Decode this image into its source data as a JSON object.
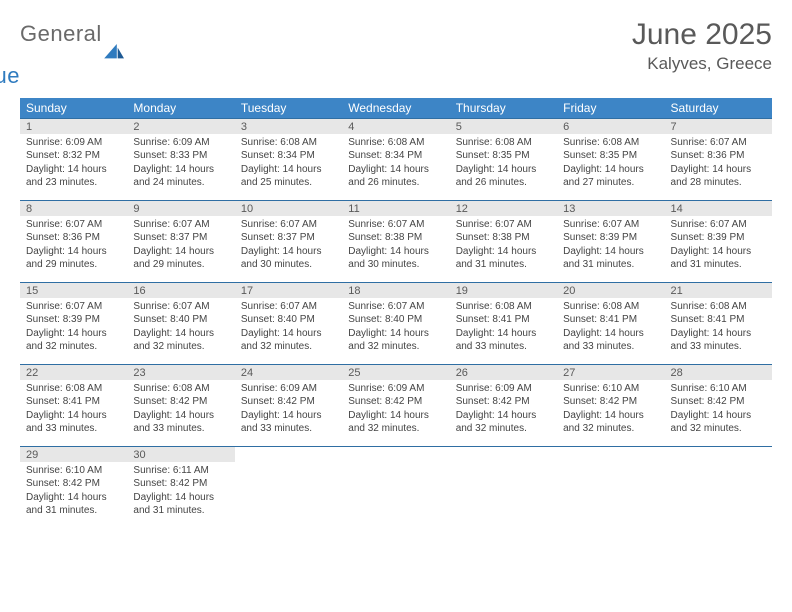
{
  "brand": {
    "word1": "General",
    "word2": "Blue"
  },
  "title": "June 2025",
  "location": "Kalyves, Greece",
  "weekdays": [
    "Sunday",
    "Monday",
    "Tuesday",
    "Wednesday",
    "Thursday",
    "Friday",
    "Saturday"
  ],
  "colors": {
    "header_bg": "#3d85c6",
    "header_text": "#ffffff",
    "daynum_bg": "#e7e7e7",
    "border": "#2f6ea3",
    "text": "#444444",
    "title": "#595959",
    "brand_gray": "#6a6a6a",
    "brand_blue": "#2f7bbf"
  },
  "weeks": [
    [
      {
        "n": "1",
        "sr": "Sunrise: 6:09 AM",
        "ss": "Sunset: 8:32 PM",
        "d1": "Daylight: 14 hours",
        "d2": "and 23 minutes."
      },
      {
        "n": "2",
        "sr": "Sunrise: 6:09 AM",
        "ss": "Sunset: 8:33 PM",
        "d1": "Daylight: 14 hours",
        "d2": "and 24 minutes."
      },
      {
        "n": "3",
        "sr": "Sunrise: 6:08 AM",
        "ss": "Sunset: 8:34 PM",
        "d1": "Daylight: 14 hours",
        "d2": "and 25 minutes."
      },
      {
        "n": "4",
        "sr": "Sunrise: 6:08 AM",
        "ss": "Sunset: 8:34 PM",
        "d1": "Daylight: 14 hours",
        "d2": "and 26 minutes."
      },
      {
        "n": "5",
        "sr": "Sunrise: 6:08 AM",
        "ss": "Sunset: 8:35 PM",
        "d1": "Daylight: 14 hours",
        "d2": "and 26 minutes."
      },
      {
        "n": "6",
        "sr": "Sunrise: 6:08 AM",
        "ss": "Sunset: 8:35 PM",
        "d1": "Daylight: 14 hours",
        "d2": "and 27 minutes."
      },
      {
        "n": "7",
        "sr": "Sunrise: 6:07 AM",
        "ss": "Sunset: 8:36 PM",
        "d1": "Daylight: 14 hours",
        "d2": "and 28 minutes."
      }
    ],
    [
      {
        "n": "8",
        "sr": "Sunrise: 6:07 AM",
        "ss": "Sunset: 8:36 PM",
        "d1": "Daylight: 14 hours",
        "d2": "and 29 minutes."
      },
      {
        "n": "9",
        "sr": "Sunrise: 6:07 AM",
        "ss": "Sunset: 8:37 PM",
        "d1": "Daylight: 14 hours",
        "d2": "and 29 minutes."
      },
      {
        "n": "10",
        "sr": "Sunrise: 6:07 AM",
        "ss": "Sunset: 8:37 PM",
        "d1": "Daylight: 14 hours",
        "d2": "and 30 minutes."
      },
      {
        "n": "11",
        "sr": "Sunrise: 6:07 AM",
        "ss": "Sunset: 8:38 PM",
        "d1": "Daylight: 14 hours",
        "d2": "and 30 minutes."
      },
      {
        "n": "12",
        "sr": "Sunrise: 6:07 AM",
        "ss": "Sunset: 8:38 PM",
        "d1": "Daylight: 14 hours",
        "d2": "and 31 minutes."
      },
      {
        "n": "13",
        "sr": "Sunrise: 6:07 AM",
        "ss": "Sunset: 8:39 PM",
        "d1": "Daylight: 14 hours",
        "d2": "and 31 minutes."
      },
      {
        "n": "14",
        "sr": "Sunrise: 6:07 AM",
        "ss": "Sunset: 8:39 PM",
        "d1": "Daylight: 14 hours",
        "d2": "and 31 minutes."
      }
    ],
    [
      {
        "n": "15",
        "sr": "Sunrise: 6:07 AM",
        "ss": "Sunset: 8:39 PM",
        "d1": "Daylight: 14 hours",
        "d2": "and 32 minutes."
      },
      {
        "n": "16",
        "sr": "Sunrise: 6:07 AM",
        "ss": "Sunset: 8:40 PM",
        "d1": "Daylight: 14 hours",
        "d2": "and 32 minutes."
      },
      {
        "n": "17",
        "sr": "Sunrise: 6:07 AM",
        "ss": "Sunset: 8:40 PM",
        "d1": "Daylight: 14 hours",
        "d2": "and 32 minutes."
      },
      {
        "n": "18",
        "sr": "Sunrise: 6:07 AM",
        "ss": "Sunset: 8:40 PM",
        "d1": "Daylight: 14 hours",
        "d2": "and 32 minutes."
      },
      {
        "n": "19",
        "sr": "Sunrise: 6:08 AM",
        "ss": "Sunset: 8:41 PM",
        "d1": "Daylight: 14 hours",
        "d2": "and 33 minutes."
      },
      {
        "n": "20",
        "sr": "Sunrise: 6:08 AM",
        "ss": "Sunset: 8:41 PM",
        "d1": "Daylight: 14 hours",
        "d2": "and 33 minutes."
      },
      {
        "n": "21",
        "sr": "Sunrise: 6:08 AM",
        "ss": "Sunset: 8:41 PM",
        "d1": "Daylight: 14 hours",
        "d2": "and 33 minutes."
      }
    ],
    [
      {
        "n": "22",
        "sr": "Sunrise: 6:08 AM",
        "ss": "Sunset: 8:41 PM",
        "d1": "Daylight: 14 hours",
        "d2": "and 33 minutes."
      },
      {
        "n": "23",
        "sr": "Sunrise: 6:08 AM",
        "ss": "Sunset: 8:42 PM",
        "d1": "Daylight: 14 hours",
        "d2": "and 33 minutes."
      },
      {
        "n": "24",
        "sr": "Sunrise: 6:09 AM",
        "ss": "Sunset: 8:42 PM",
        "d1": "Daylight: 14 hours",
        "d2": "and 33 minutes."
      },
      {
        "n": "25",
        "sr": "Sunrise: 6:09 AM",
        "ss": "Sunset: 8:42 PM",
        "d1": "Daylight: 14 hours",
        "d2": "and 32 minutes."
      },
      {
        "n": "26",
        "sr": "Sunrise: 6:09 AM",
        "ss": "Sunset: 8:42 PM",
        "d1": "Daylight: 14 hours",
        "d2": "and 32 minutes."
      },
      {
        "n": "27",
        "sr": "Sunrise: 6:10 AM",
        "ss": "Sunset: 8:42 PM",
        "d1": "Daylight: 14 hours",
        "d2": "and 32 minutes."
      },
      {
        "n": "28",
        "sr": "Sunrise: 6:10 AM",
        "ss": "Sunset: 8:42 PM",
        "d1": "Daylight: 14 hours",
        "d2": "and 32 minutes."
      }
    ],
    [
      {
        "n": "29",
        "sr": "Sunrise: 6:10 AM",
        "ss": "Sunset: 8:42 PM",
        "d1": "Daylight: 14 hours",
        "d2": "and 31 minutes."
      },
      {
        "n": "30",
        "sr": "Sunrise: 6:11 AM",
        "ss": "Sunset: 8:42 PM",
        "d1": "Daylight: 14 hours",
        "d2": "and 31 minutes."
      },
      null,
      null,
      null,
      null,
      null
    ]
  ]
}
